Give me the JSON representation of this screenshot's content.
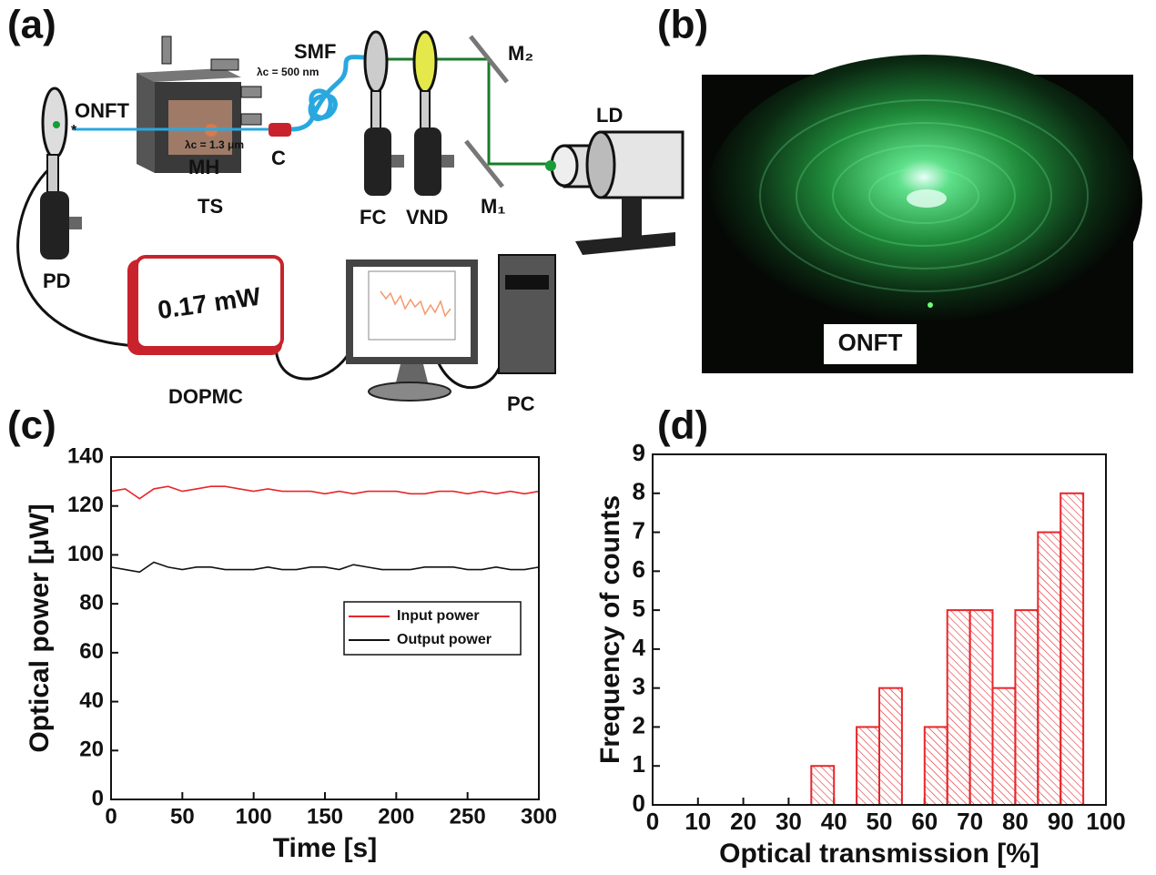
{
  "panels": [
    "(a)",
    "(b)",
    "(c)",
    "(d)"
  ],
  "diagram": {
    "onft": "ONFT",
    "ts": "TS",
    "mh": "MH",
    "c": "C",
    "smf": "SMF",
    "lambda_smf": "λc = 500 nm",
    "lambda_mh": "λc = 1.3 μm",
    "fc": "FC",
    "vnd": "VND",
    "m2": "M₂",
    "m1": "M₁",
    "ld": "LD",
    "pd": "PD",
    "meter_reading": "0.17 mW",
    "dopmc": "DOPMC",
    "pc": "PC"
  },
  "photo": {
    "label": "ONFT"
  },
  "chart_data": [
    {
      "type": "line",
      "xlabel": "Time [s]",
      "ylabel": "Optical power [μW]",
      "x": [
        0,
        10,
        20,
        30,
        40,
        50,
        60,
        70,
        80,
        90,
        100,
        110,
        120,
        130,
        140,
        150,
        160,
        170,
        180,
        190,
        200,
        210,
        220,
        230,
        240,
        250,
        260,
        270,
        280,
        290,
        300
      ],
      "series": [
        {
          "name": "Input power",
          "color": "#e8262a",
          "values": [
            126,
            127,
            123,
            127,
            128,
            126,
            127,
            128,
            128,
            127,
            126,
            127,
            126,
            126,
            126,
            125,
            126,
            125,
            126,
            126,
            126,
            125,
            125,
            126,
            126,
            125,
            126,
            125,
            126,
            125,
            126
          ]
        },
        {
          "name": "Output power",
          "color": "#111111",
          "values": [
            95,
            94,
            93,
            97,
            95,
            94,
            95,
            95,
            94,
            94,
            94,
            95,
            94,
            94,
            95,
            95,
            94,
            96,
            95,
            94,
            94,
            94,
            95,
            95,
            95,
            94,
            94,
            95,
            94,
            94,
            95
          ]
        }
      ],
      "xlim": [
        0,
        300
      ],
      "xticks": [
        0,
        50,
        100,
        150,
        200,
        250,
        300
      ],
      "ylim": [
        0,
        140
      ],
      "yticks": [
        0,
        20,
        40,
        60,
        80,
        100,
        120,
        140
      ],
      "legend": "center right"
    },
    {
      "type": "histogram",
      "xlabel": "Optical transmission [%]",
      "ylabel": "Frequency of counts",
      "color": "#e8262a",
      "hatch": true,
      "bins": [
        0,
        5,
        10,
        15,
        20,
        25,
        30,
        35,
        40,
        45,
        50,
        55,
        60,
        65,
        70,
        75,
        80,
        85,
        90,
        95,
        100
      ],
      "values": [
        0,
        0,
        0,
        0,
        0,
        0,
        0,
        1,
        0,
        2,
        3,
        0,
        2,
        5,
        5,
        3,
        5,
        7,
        8,
        0
      ],
      "xlim": [
        0,
        100
      ],
      "xticks": [
        0,
        10,
        20,
        30,
        40,
        50,
        60,
        70,
        80,
        90,
        100
      ],
      "ylim": [
        0,
        9
      ],
      "yticks": [
        0,
        1,
        2,
        3,
        4,
        5,
        6,
        7,
        8,
        9
      ]
    }
  ]
}
